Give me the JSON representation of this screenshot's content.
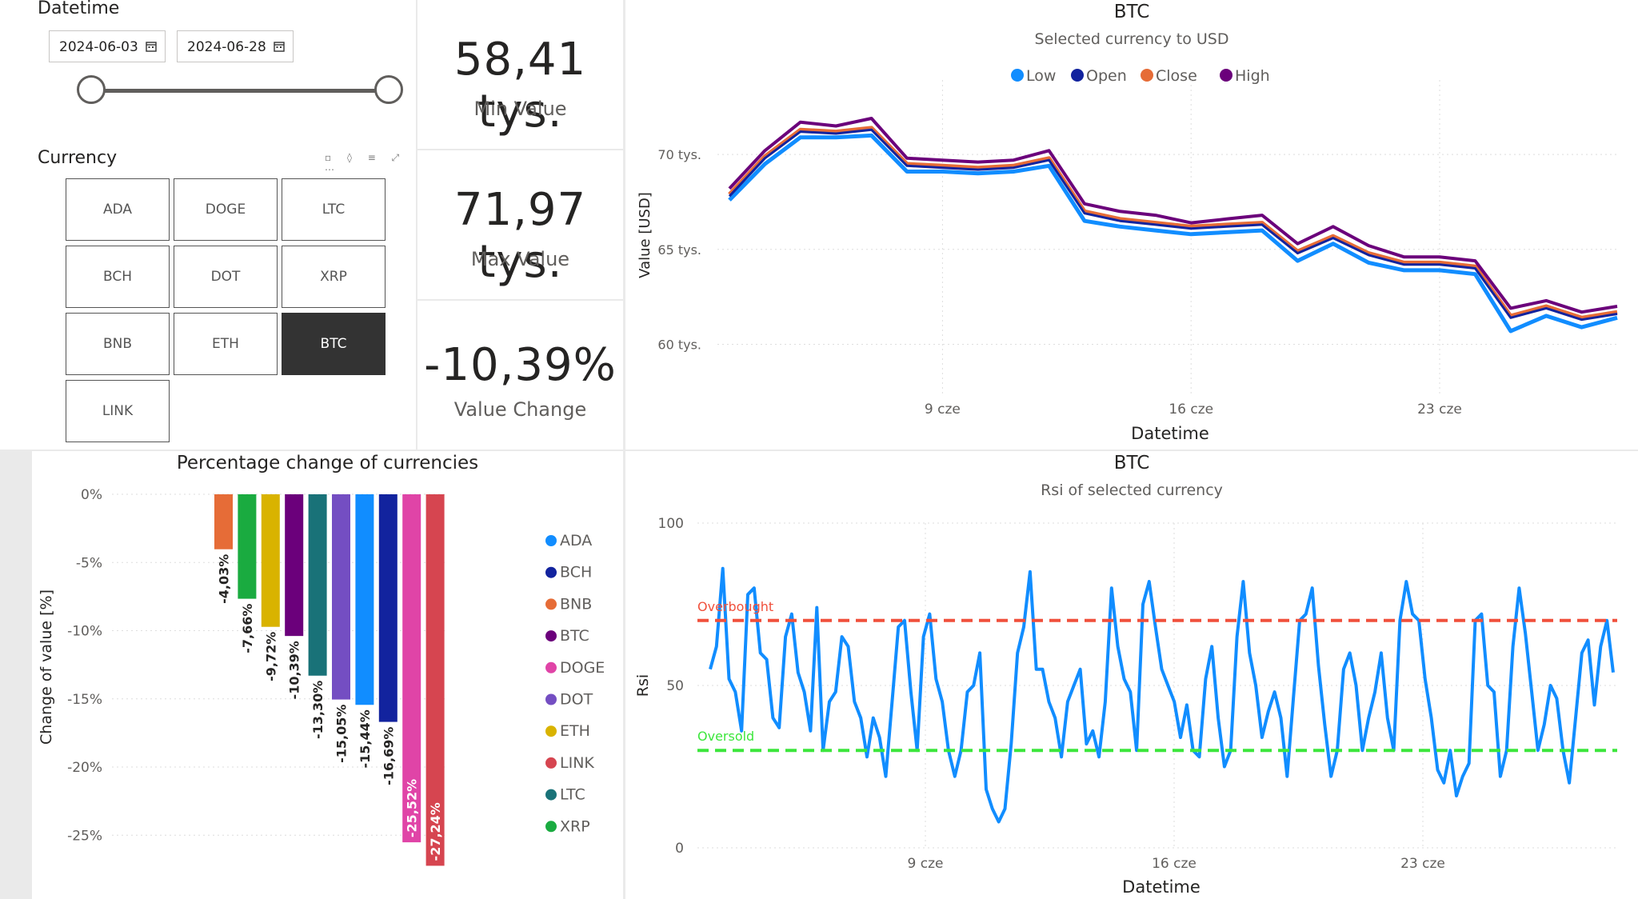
{
  "datetime_slicer": {
    "title": "Datetime",
    "start_date": "2024-06-03",
    "end_date": "2024-06-28"
  },
  "currency_slicer": {
    "title": "Currency",
    "options": [
      "ADA",
      "DOGE",
      "LTC",
      "BCH",
      "DOT",
      "XRP",
      "BNB",
      "ETH",
      "BTC",
      "LINK"
    ],
    "selected": "BTC"
  },
  "kpis": {
    "min": {
      "value": "58,41 tys.",
      "label": "Min Value"
    },
    "max": {
      "value": "71,97 tys.",
      "label": "Max Value"
    },
    "change": {
      "value": "-10,39%",
      "label": "Value Change"
    }
  },
  "colors": {
    "low": "#118DFF",
    "open": "#12239E",
    "close": "#E66C37",
    "high": "#6B007B",
    "rsi": "#118DFF",
    "overbought": "#F0503C",
    "oversold": "#3CE63C",
    "ADA": "#118DFF",
    "BCH": "#12239E",
    "BNB": "#E66C37",
    "BTC": "#6B007B",
    "DOGE": "#E044A7",
    "DOT": "#744EC2",
    "ETH": "#D9B300",
    "LINK": "#D64550",
    "LTC": "#197278",
    "XRP": "#1AAB40"
  },
  "price_chart": {
    "title": "BTC",
    "subtitle": "Selected currency to USD",
    "legend": [
      "Low",
      "Open",
      "Close",
      "High"
    ],
    "y_axis_title": "Value [USD]",
    "x_axis_title": "Datetime",
    "y_ticks": [
      "70 tys.",
      "65 tys.",
      "60 tys."
    ],
    "x_ticks": [
      "9 cze",
      "16 cze",
      "23 cze"
    ]
  },
  "rsi_chart": {
    "title": "BTC",
    "subtitle": "Rsi of selected currency",
    "y_axis_title": "Rsi",
    "x_axis_title": "Datetime",
    "y_ticks": [
      "100",
      "50",
      "0"
    ],
    "x_ticks": [
      "9 cze",
      "16 cze",
      "23 cze"
    ],
    "overbought_label": "Overbought",
    "oversold_label": "Oversold"
  },
  "pct_chart": {
    "title": "Percentage change of currencies",
    "y_axis_title": "Change of value [%]",
    "y_ticks": [
      "0%",
      "-5%",
      "-10%",
      "-15%",
      "-20%",
      "-25%"
    ],
    "legend": [
      "ADA",
      "BCH",
      "BNB",
      "BTC",
      "DOGE",
      "DOT",
      "ETH",
      "LINK",
      "LTC",
      "XRP"
    ]
  },
  "chart_data": [
    {
      "type": "line",
      "title": "BTC",
      "subtitle": "Selected currency to USD",
      "xlabel": "Datetime",
      "ylabel": "Value [USD]",
      "xlim": [
        "2024-06-03",
        "2024-06-28"
      ],
      "ylim": [
        58000,
        73500
      ],
      "x": [
        "2024-06-03",
        "2024-06-04",
        "2024-06-05",
        "2024-06-06",
        "2024-06-07",
        "2024-06-08",
        "2024-06-09",
        "2024-06-10",
        "2024-06-11",
        "2024-06-12",
        "2024-06-13",
        "2024-06-14",
        "2024-06-15",
        "2024-06-16",
        "2024-06-17",
        "2024-06-18",
        "2024-06-19",
        "2024-06-20",
        "2024-06-21",
        "2024-06-22",
        "2024-06-23",
        "2024-06-24",
        "2024-06-25",
        "2024-06-26",
        "2024-06-27",
        "2024-06-28"
      ],
      "series": [
        {
          "name": "High",
          "values": [
            68200,
            70200,
            71700,
            71500,
            71900,
            69800,
            69700,
            69600,
            69700,
            70200,
            67400,
            67000,
            66800,
            66400,
            66600,
            66800,
            65300,
            66200,
            65200,
            64600,
            64600,
            64400,
            61900,
            62300,
            61700,
            62000
          ]
        },
        {
          "name": "Close",
          "values": [
            67900,
            69900,
            71300,
            71200,
            71400,
            69500,
            69400,
            69300,
            69400,
            69800,
            67000,
            66600,
            66400,
            66200,
            66300,
            66400,
            64900,
            65700,
            64800,
            64300,
            64300,
            64100,
            61500,
            62000,
            61400,
            61700
          ]
        },
        {
          "name": "Open",
          "values": [
            67800,
            69800,
            71200,
            71100,
            71300,
            69400,
            69300,
            69200,
            69300,
            69700,
            66900,
            66500,
            66300,
            66100,
            66200,
            66300,
            64800,
            65600,
            64700,
            64200,
            64200,
            64000,
            61400,
            61900,
            61300,
            61600
          ]
        },
        {
          "name": "Low",
          "values": [
            67600,
            69500,
            70900,
            70900,
            71000,
            69100,
            69100,
            69000,
            69100,
            69400,
            66500,
            66200,
            66000,
            65800,
            65900,
            66000,
            64400,
            65300,
            64300,
            63900,
            63900,
            63700,
            60700,
            61500,
            60900,
            61400
          ]
        }
      ]
    },
    {
      "type": "line",
      "title": "BTC",
      "subtitle": "Rsi of selected currency",
      "xlabel": "Datetime",
      "ylabel": "Rsi",
      "xlim": [
        "2024-06-03",
        "2024-06-28"
      ],
      "ylim": [
        0,
        100
      ],
      "reference_lines": [
        {
          "label": "Overbought",
          "value": 70
        },
        {
          "label": "Oversold",
          "value": 30
        }
      ],
      "series": [
        {
          "name": "Rsi",
          "values": [
            55,
            62,
            86,
            52,
            48,
            36,
            78,
            80,
            60,
            58,
            40,
            37,
            65,
            72,
            54,
            48,
            36,
            74,
            30,
            45,
            48,
            65,
            62,
            45,
            40,
            28,
            40,
            34,
            22,
            45,
            68,
            70,
            48,
            30,
            65,
            72,
            52,
            45,
            30,
            22,
            30,
            48,
            50,
            60,
            18,
            12,
            8,
            12,
            32,
            60,
            68,
            85,
            55,
            55,
            45,
            40,
            28,
            45,
            50,
            55,
            32,
            36,
            28,
            45,
            80,
            62,
            52,
            48,
            30,
            75,
            82,
            68,
            55,
            50,
            45,
            34,
            44,
            30,
            28,
            52,
            62,
            40,
            25,
            30,
            65,
            82,
            60,
            50,
            34,
            42,
            48,
            40,
            22,
            46,
            70,
            72,
            80,
            56,
            38,
            22,
            30,
            55,
            60,
            50,
            30,
            40,
            48,
            60,
            40,
            30,
            70,
            82,
            72,
            70,
            52,
            40,
            24,
            20,
            30,
            16,
            22,
            26,
            70,
            72,
            50,
            48,
            22,
            30,
            62,
            80,
            66,
            48,
            30,
            38,
            50,
            46,
            30,
            20,
            40,
            60,
            64,
            44,
            62,
            70,
            54
          ]
        }
      ]
    },
    {
      "type": "bar",
      "title": "Percentage change of currencies",
      "ylabel": "Change of value [%]",
      "ylim": [
        -27.24,
        0
      ],
      "categories": [
        "BNB",
        "XRP",
        "ETH",
        "BTC",
        "LTC",
        "DOT",
        "ADA",
        "BCH",
        "DOGE",
        "LINK"
      ],
      "values": [
        -4.03,
        -7.66,
        -9.72,
        -10.39,
        -13.3,
        -15.05,
        -15.44,
        -16.69,
        -25.52,
        -27.24
      ],
      "data_labels": [
        "-4,03%",
        "-7,66%",
        "-9,72%",
        "-10,39%",
        "-13,30%",
        "-15,05%",
        "-15,44%",
        "-16,69%",
        "-25,52%",
        "-27,24%"
      ]
    }
  ]
}
